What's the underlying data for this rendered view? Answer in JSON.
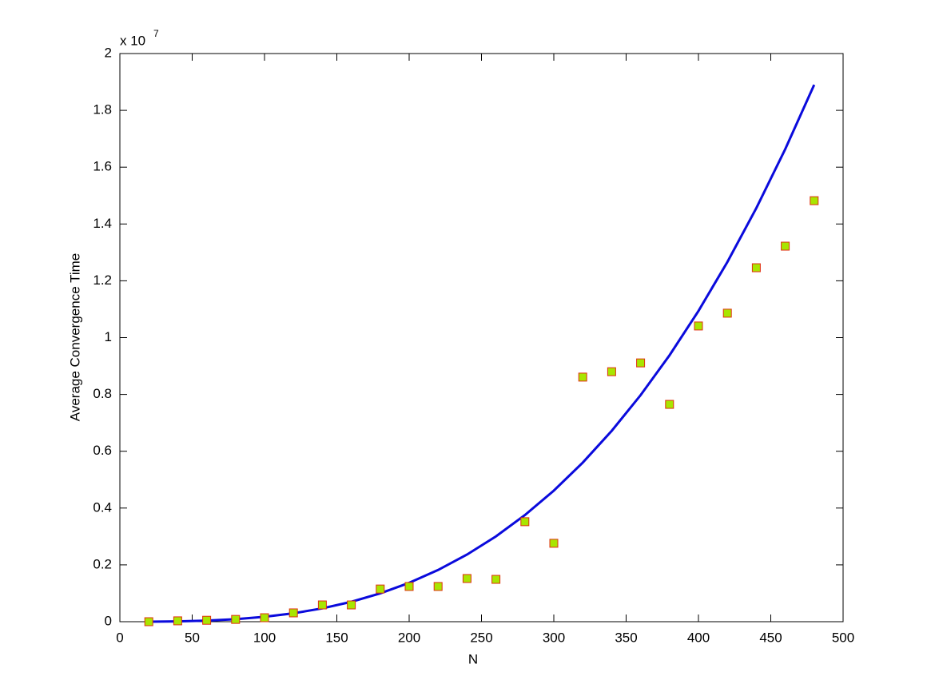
{
  "chart_data": {
    "type": "scatter",
    "xlabel": "N",
    "ylabel": "Average Convergence Time",
    "y_multiplier": "x 10",
    "y_multiplier_exponent": "7",
    "xlim": [
      0,
      500
    ],
    "xticks": [
      0,
      50,
      100,
      150,
      200,
      250,
      300,
      350,
      400,
      450,
      500
    ],
    "ylim": [
      0,
      2
    ],
    "yticks": [
      0,
      0.2,
      0.4,
      0.6,
      0.8,
      1,
      1.2,
      1.4,
      1.6,
      1.8,
      2
    ],
    "grid": false,
    "series": [
      {
        "type": "line",
        "color": "#0a0adc",
        "x": [
          20,
          40,
          60,
          80,
          100,
          120,
          140,
          160,
          180,
          200,
          220,
          240,
          260,
          280,
          300,
          320,
          340,
          360,
          380,
          400,
          420,
          440,
          460,
          480
        ],
        "values": [
          0.0001,
          0.0011,
          0.0037,
          0.0088,
          0.0171,
          0.0295,
          0.0469,
          0.07,
          0.0997,
          0.1367,
          0.182,
          0.2363,
          0.3004,
          0.3752,
          0.4614,
          0.56,
          0.6717,
          0.7974,
          0.9378,
          1.0938,
          1.2662,
          1.4558,
          1.6635,
          1.89
        ]
      },
      {
        "type": "scatter",
        "color": "#a8e600",
        "edgecolor": "#e03010",
        "x": [
          20,
          40,
          60,
          80,
          100,
          120,
          140,
          160,
          180,
          200,
          220,
          240,
          260,
          280,
          300,
          320,
          340,
          360,
          380,
          400,
          420,
          440,
          460,
          480
        ],
        "values": [
          0.0,
          0.003,
          0.005,
          0.008,
          0.014,
          0.031,
          0.059,
          0.059,
          0.115,
          0.124,
          0.124,
          0.152,
          0.149,
          0.352,
          0.276,
          0.861,
          0.88,
          0.911,
          0.765,
          1.041,
          1.086,
          1.246,
          1.322,
          1.482
        ]
      }
    ]
  }
}
